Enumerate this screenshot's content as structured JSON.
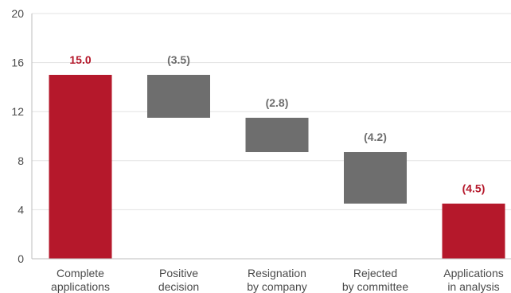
{
  "chart_data": {
    "type": "bar",
    "subtype": "waterfall",
    "title": "",
    "xlabel": "",
    "ylabel": "",
    "ylim": [
      0,
      20
    ],
    "yticks": [
      0,
      4,
      8,
      12,
      16,
      20
    ],
    "grid": true,
    "categories": [
      [
        "Complete",
        "applications"
      ],
      [
        "Positive",
        "decision"
      ],
      [
        "Resignation",
        "by company"
      ],
      [
        "Rejected",
        "by committee"
      ],
      [
        "Applications",
        "in analysis"
      ]
    ],
    "bars": [
      {
        "start": 0,
        "end": 15.0,
        "label": "15.0",
        "kind": "total"
      },
      {
        "start": 15.0,
        "end": 11.5,
        "label": "(3.5)",
        "kind": "delta"
      },
      {
        "start": 11.5,
        "end": 8.7,
        "label": "(2.8)",
        "kind": "delta"
      },
      {
        "start": 8.7,
        "end": 4.5,
        "label": "(4.2)",
        "kind": "delta"
      },
      {
        "start": 0,
        "end": 4.5,
        "label": "(4.5)",
        "kind": "total"
      }
    ],
    "colors": {
      "total": "#b5182b",
      "delta": "#6e6e6e",
      "total_label": "#b5182b",
      "delta_label": "#6e6e6e"
    }
  }
}
